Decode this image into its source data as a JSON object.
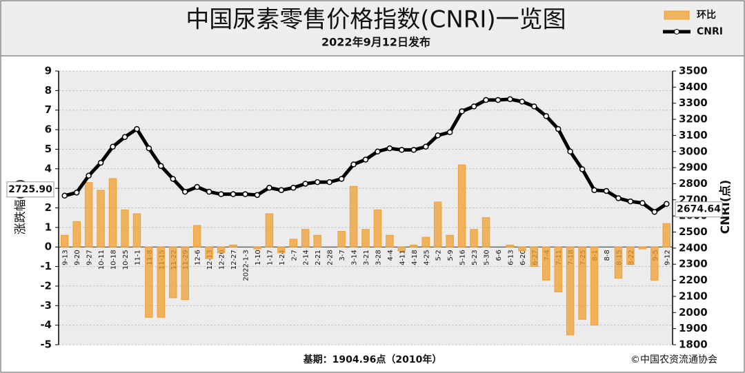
{
  "chart_data": {
    "type": "bar-line",
    "title": "中国尿素零售价格指数(CNRI)一览图",
    "subtitle": "2022年9月12日发布",
    "ylabel": "涨跌幅(%)",
    "y2label": "CNRI(点)",
    "footnote": "基期：1904.96点（2010年）",
    "source": "©中国农资流通协会",
    "categories": [
      "9-13",
      "9-20",
      "9-27",
      "10-11",
      "10-18",
      "10-25",
      "11-1",
      "11-8",
      "11-15",
      "11-22",
      "11-29",
      "12-6",
      "12-13",
      "12-20",
      "12-27",
      "2022-1-3",
      "1-10",
      "1-17",
      "1-24",
      "2-7",
      "2-14",
      "2-21",
      "2-28",
      "3-7",
      "3-14",
      "3-21",
      "3-28",
      "4-4",
      "4-11",
      "4-18",
      "4-25",
      "5-2",
      "5-9",
      "5-16",
      "5-23",
      "5-30",
      "6-6",
      "6-13",
      "6-20",
      "6-27",
      "7-4",
      "7-11",
      "7-18",
      "7-25",
      "8-1",
      "8-8",
      "8-15",
      "8-22",
      null,
      "9-5",
      "9-12"
    ],
    "series": [
      {
        "name": "环比",
        "type": "bar",
        "axis": "y",
        "color": "#f0a030",
        "values": [
          0.6,
          1.3,
          3.3,
          2.9,
          3.5,
          1.9,
          1.7,
          -3.6,
          -3.6,
          -2.6,
          -2.7,
          1.1,
          -0.6,
          -0.3,
          0.1,
          0,
          -0.1,
          1.7,
          -0.3,
          0.4,
          0.9,
          0.6,
          0,
          0.8,
          3.1,
          0.9,
          1.9,
          0.6,
          -0.2,
          0.1,
          0.5,
          2.3,
          0.6,
          4.2,
          0.9,
          1.5,
          0,
          0.1,
          -0.2,
          -1.0,
          -1.7,
          -2.3,
          -4.5,
          -3.7,
          -4.0,
          0,
          -1.6,
          -0.9,
          -0.1,
          -1.7,
          1.2
        ]
      },
      {
        "name": "CNRI",
        "type": "line",
        "axis": "y2",
        "color": "#000000",
        "values": [
          2725.9,
          2745,
          2850,
          2930,
          3030,
          3090,
          3140,
          3020,
          2910,
          2830,
          2750,
          2780,
          2750,
          2735,
          2735,
          2735,
          2730,
          2775,
          2760,
          2775,
          2800,
          2810,
          2810,
          2830,
          2920,
          2950,
          3000,
          3020,
          3010,
          3010,
          3030,
          3100,
          3120,
          3250,
          3280,
          3320,
          3320,
          3325,
          3310,
          3280,
          3220,
          3140,
          3000,
          2890,
          2760,
          2755,
          2710,
          2690,
          2680,
          2625,
          2674.64
        ],
        "value_labels": [
          "2725.90",
          null,
          null,
          null,
          null,
          null,
          null,
          null,
          null,
          null,
          null,
          null,
          null,
          null,
          null,
          null,
          null,
          null,
          null,
          null,
          null,
          null,
          null,
          null,
          null,
          null,
          null,
          null,
          null,
          null,
          null,
          null,
          null,
          null,
          null,
          null,
          null,
          null,
          null,
          null,
          null,
          null,
          null,
          null,
          null,
          null,
          null,
          null,
          null,
          null,
          "2674.64"
        ]
      }
    ],
    "ylim": [
      -5,
      9
    ],
    "yticks": [
      -5,
      -4,
      -3,
      -2,
      -1,
      0,
      1,
      2,
      3,
      4,
      5,
      6,
      7,
      8,
      9
    ],
    "y2lim": [
      1800,
      3500
    ],
    "y2ticks": [
      1800,
      1900,
      2000,
      2100,
      2200,
      2300,
      2400,
      2500,
      2600,
      2700,
      2800,
      2900,
      3000,
      3100,
      3200,
      3300,
      3400,
      3500
    ],
    "grid": true
  }
}
